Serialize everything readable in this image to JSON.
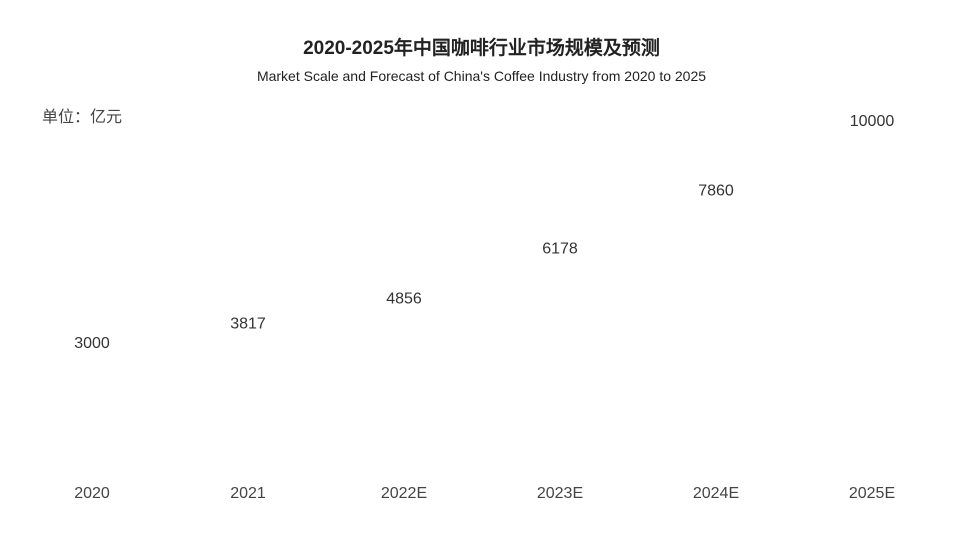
{
  "title": "2020-2025年中国咖啡行业市场规模及预测",
  "subtitle": "Market Scale and Forecast of China's Coffee Industry from 2020 to 2025",
  "unit_label": "单位：亿元",
  "icon": "coffee-cup-icon",
  "colors": {
    "cup": "#FF6A13"
  },
  "chart_data": {
    "type": "bar",
    "style": "pictograph",
    "categories": [
      "2020",
      "2021",
      "2022E",
      "2023E",
      "2024E",
      "2025E"
    ],
    "values": [
      3000,
      3817,
      4856,
      6178,
      7860,
      10000
    ],
    "value_labels": [
      "3000",
      "3817",
      "4856",
      "6178",
      "7860",
      "10000"
    ],
    "units_per_icon": 2500,
    "title": "2020-2025年中国咖啡行业市场规模及预测",
    "ylabel": "单位：亿元",
    "xlabel": "",
    "grid": false,
    "legend": "none"
  }
}
